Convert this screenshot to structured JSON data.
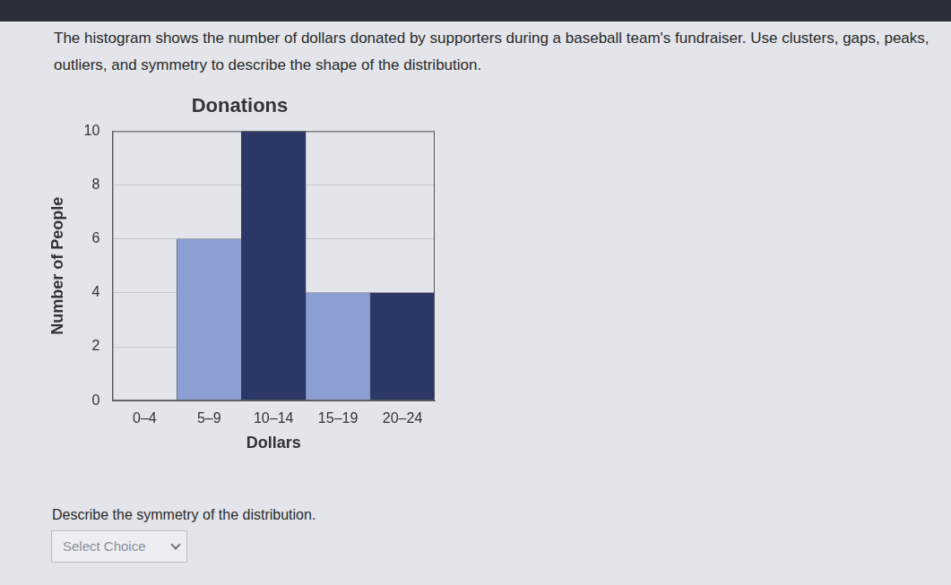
{
  "page": {
    "question": "The histogram shows the number of dollars donated by supporters during a baseball team's fundraiser. Use clusters, gaps, peaks, outliers, and symmetry to describe the shape of the distribution.",
    "prompt": "Describe the symmetry of the distribution.",
    "select": "Select Choice"
  },
  "chart_data": {
    "type": "bar",
    "title": "Donations",
    "x_label": "Dollars",
    "y_label": "Number of People",
    "categories": [
      "0–4",
      "5–9",
      "10–14",
      "15–19",
      "20–24"
    ],
    "values": [
      0,
      6,
      10,
      4,
      4
    ],
    "colors": [
      "#2b3766",
      "#8c9fd2",
      "#2b3766",
      "#8c9fd2",
      "#2b3766"
    ],
    "ylim": [
      0,
      10
    ],
    "yticks": [
      0,
      2,
      4,
      6,
      8,
      10
    ],
    "grid": true
  }
}
